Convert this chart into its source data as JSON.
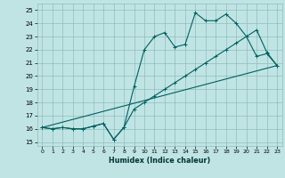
{
  "xlabel": "Humidex (Indice chaleur)",
  "bg_color": "#c0e4e4",
  "grid_color": "#90bcbc",
  "line_color": "#006060",
  "xlim": [
    -0.5,
    23.5
  ],
  "ylim": [
    14.7,
    25.5
  ],
  "yticks": [
    15,
    16,
    17,
    18,
    19,
    20,
    21,
    22,
    23,
    24,
    25
  ],
  "xticks": [
    0,
    1,
    2,
    3,
    4,
    5,
    6,
    7,
    8,
    9,
    10,
    11,
    12,
    13,
    14,
    15,
    16,
    17,
    18,
    19,
    20,
    21,
    22,
    23
  ],
  "line1_x": [
    0,
    1,
    2,
    3,
    4,
    5,
    6,
    7,
    8,
    9,
    10,
    11,
    12,
    13,
    14,
    15,
    16,
    17,
    18,
    19,
    20,
    21,
    22,
    23
  ],
  "line1_y": [
    16.1,
    16.0,
    16.1,
    16.0,
    16.0,
    16.2,
    16.4,
    15.2,
    16.1,
    19.2,
    22.0,
    23.0,
    23.3,
    22.2,
    22.4,
    24.8,
    24.2,
    24.2,
    24.7,
    24.0,
    23.0,
    21.5,
    21.7,
    20.8
  ],
  "line2_x": [
    0,
    1,
    2,
    3,
    4,
    5,
    6,
    7,
    8,
    9,
    10,
    11,
    12,
    13,
    14,
    15,
    16,
    17,
    18,
    19,
    20,
    21,
    22,
    23
  ],
  "line2_y": [
    16.1,
    16.0,
    16.1,
    16.0,
    16.0,
    16.2,
    16.4,
    15.2,
    16.1,
    17.5,
    18.0,
    18.5,
    19.0,
    19.5,
    20.0,
    20.5,
    21.0,
    21.5,
    22.0,
    22.5,
    23.0,
    23.5,
    21.8,
    20.8
  ],
  "line3_x": [
    0,
    23
  ],
  "line3_y": [
    16.1,
    20.8
  ]
}
